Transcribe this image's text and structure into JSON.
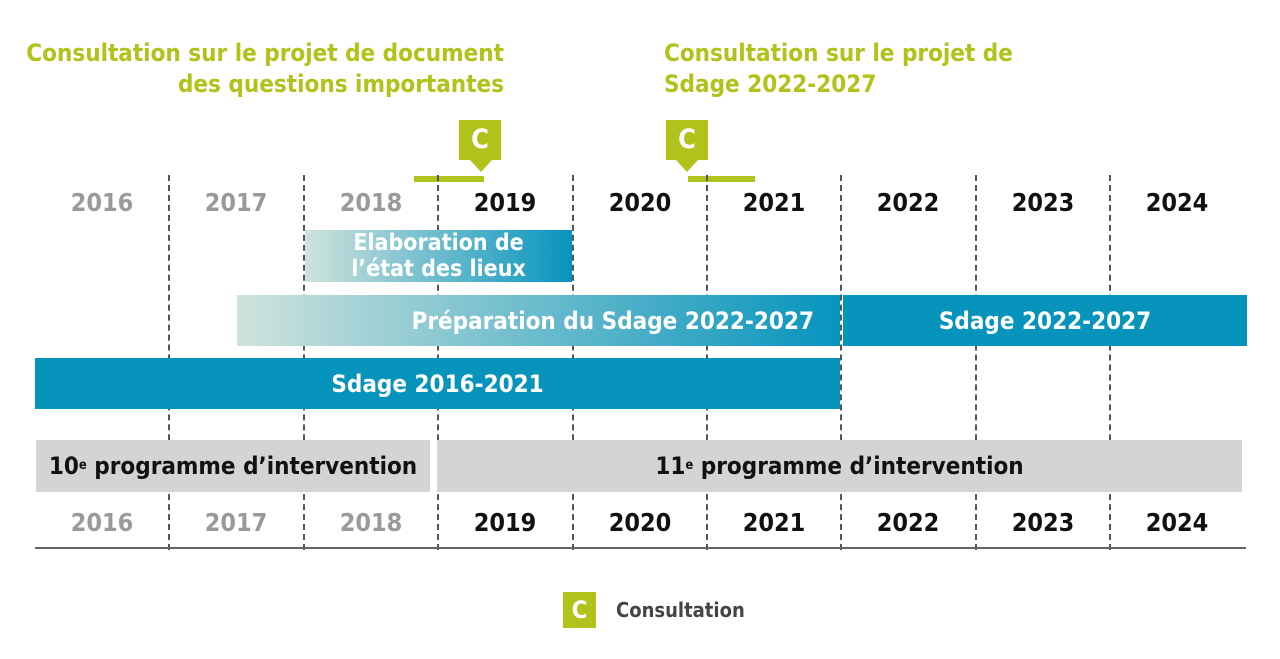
{
  "consultations": [
    {
      "title_line1": "Consultation sur le projet de document",
      "title_line2": "des questions importantes",
      "badge": "C"
    },
    {
      "title_line1": "Consultation sur le projet de",
      "title_line2": "Sdage 2022-2027",
      "badge": "C"
    }
  ],
  "years_top": [
    "2016",
    "2017",
    "2018",
    "2019",
    "2020",
    "2021",
    "2022",
    "2023",
    "2024"
  ],
  "years_bottom": [
    "2016",
    "2017",
    "2018",
    "2019",
    "2020",
    "2021",
    "2022",
    "2023",
    "2024"
  ],
  "bars": {
    "etat_des_lieux_line1": "Elaboration de",
    "etat_des_lieux_line2": "l’état des lieux",
    "preparation": "Préparation du Sdage 2022-2027",
    "sdage_2022": "Sdage 2022-2027",
    "sdage_2016": "Sdage 2016-2021"
  },
  "programmes": {
    "p10_num": "10",
    "p10_sup": "e",
    "p10_text": " programme d’intervention",
    "p11_num": "11",
    "p11_sup": "e",
    "p11_text": " programme d’intervention"
  },
  "legend": {
    "badge": "C",
    "label": "Consultation"
  },
  "colors": {
    "accent_green": "#b1c21a",
    "bar_blue": "#0694bd",
    "gradient_start": "#cfe3dc",
    "programme_gray": "#d4d4d4",
    "past_year": "#9a9a9a"
  }
}
